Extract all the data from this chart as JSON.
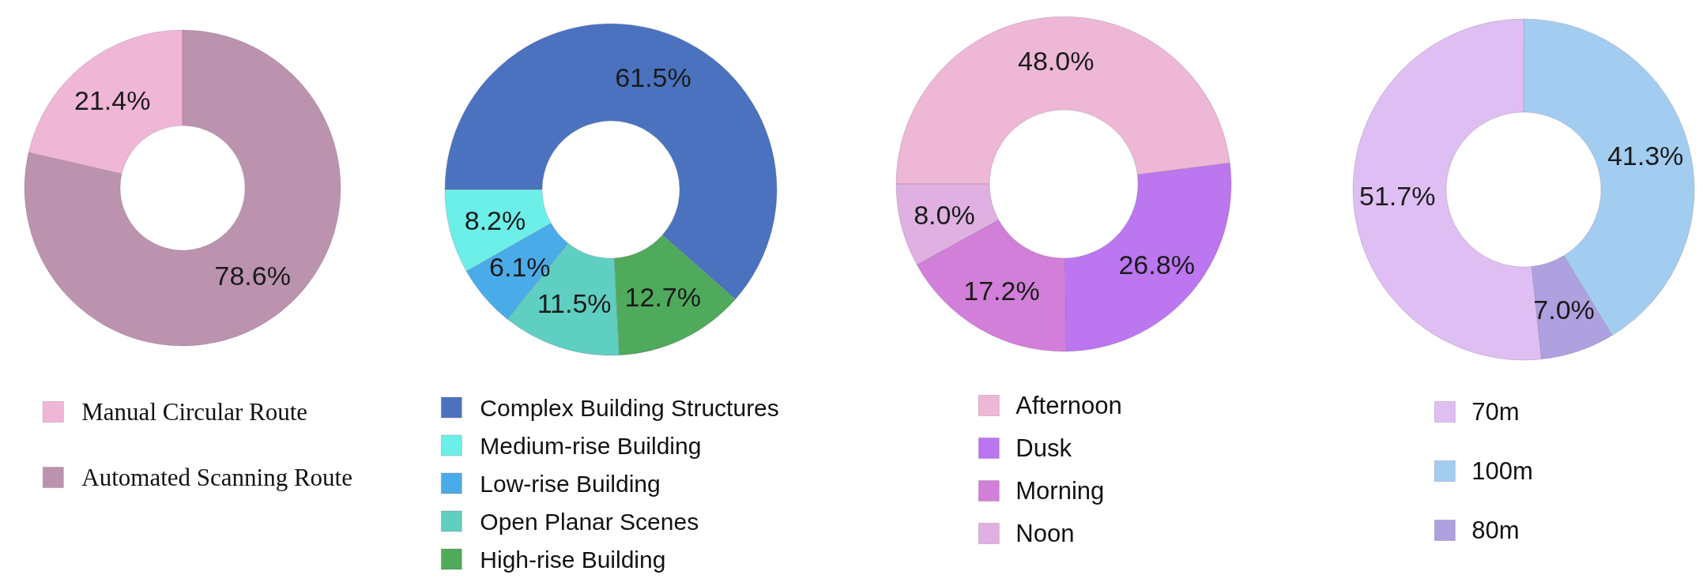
{
  "chart_data": [
    {
      "type": "donut",
      "categories": [
        "Manual Circular Route",
        "Automated Scanning Route"
      ],
      "values": [
        21.4,
        78.6
      ],
      "colors": [
        "#efb6d6",
        "#bc93ae"
      ],
      "value_labels": [
        "21.4%",
        "78.6%"
      ],
      "legend": "bottom"
    },
    {
      "type": "donut",
      "categories": [
        "Complex Building Structures",
        "Medium-rise Building",
        "Low-rise Building",
        "Open Planar Scenes",
        "High-rise Building"
      ],
      "values": [
        61.5,
        8.2,
        6.1,
        11.5,
        12.7
      ],
      "colors": [
        "#4a72bf",
        "#6cefe9",
        "#4aabe9",
        "#5ecfc0",
        "#4faa5b"
      ],
      "value_labels": [
        "61.5%",
        "8.2%",
        "6.1%",
        "11.5%",
        "12.7%"
      ],
      "legend": "bottom"
    },
    {
      "type": "donut",
      "categories": [
        "Afternoon",
        "Dusk",
        "Morning",
        "Noon"
      ],
      "values": [
        48.0,
        26.8,
        17.2,
        8.0
      ],
      "colors": [
        "#eeb7d6",
        "#bb76f0",
        "#d17fd8",
        "#dfb0e1"
      ],
      "value_labels": [
        "48.0%",
        "26.8%",
        "17.2%",
        "8.0%"
      ],
      "legend": "bottom"
    },
    {
      "type": "donut",
      "categories": [
        "70m",
        "100m",
        "80m"
      ],
      "values": [
        51.7,
        41.3,
        7.0
      ],
      "colors": [
        "#dfbff3",
        "#a2cdf0",
        "#afa0e0"
      ],
      "value_labels": [
        "51.7%",
        "41.3%",
        "7.0%"
      ],
      "legend": "bottom"
    }
  ]
}
